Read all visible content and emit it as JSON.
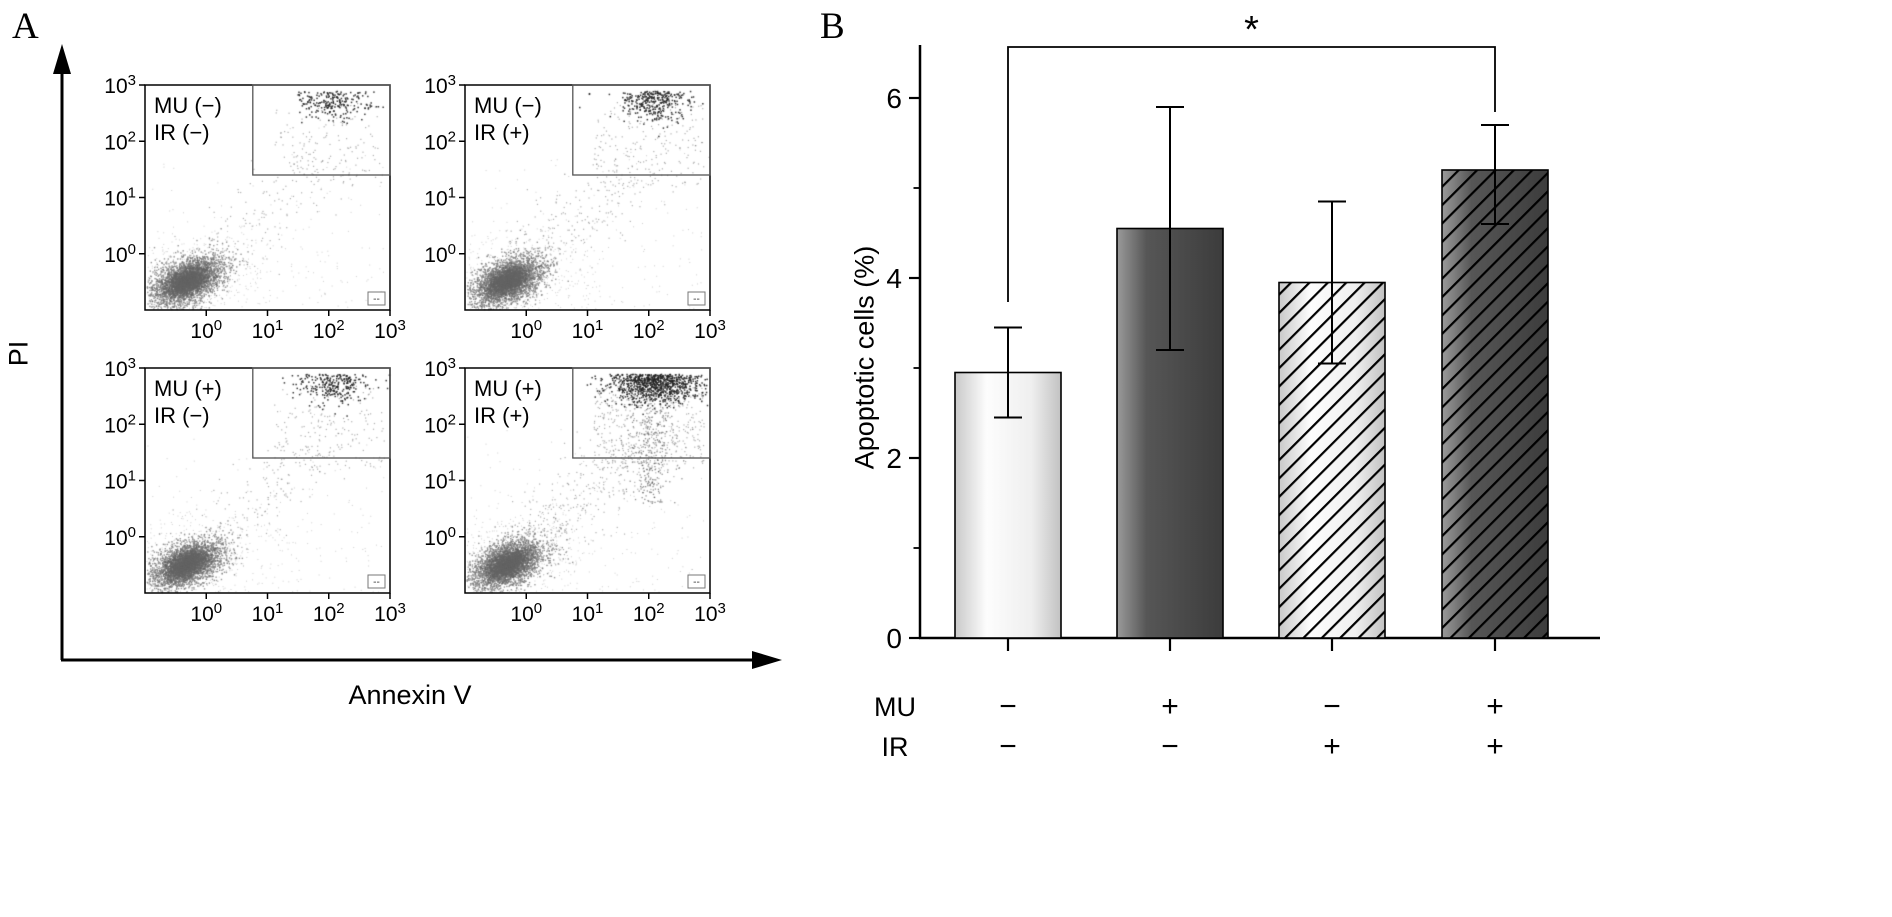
{
  "panel_a": {
    "label": "A",
    "x_axis_label": "Annexin V",
    "y_axis_label": "PI"
  },
  "panel_b": {
    "label": "B"
  },
  "colors": {
    "axis": "#000000",
    "gate_stroke": "#555555",
    "dot_main": "#7d7d7d",
    "dot_dark": "#232323",
    "bar_light_mid": "#fdfdfd",
    "bar_light_edge": "#c2c2c2",
    "bar_dark_mid": "#565656",
    "bar_dark_edge": "#3c3c3c"
  },
  "chart_data": {
    "flow": {
      "type": "scatter",
      "x_axis": "Annexin V",
      "y_axis": "PI",
      "scale": "log10",
      "axis_range_decades": [
        -1,
        3
      ],
      "tick_base": "10",
      "tick_exponents": [
        "0",
        "1",
        "2",
        "3"
      ],
      "corner_box_label": "--",
      "subplots": [
        {
          "line1": "MU (−)",
          "line2": "IR (−)",
          "gate_n": 230,
          "mid_n": 160,
          "tail": false,
          "seed": 101
        },
        {
          "line1": "MU (−)",
          "line2": "IR (+)",
          "gate_n": 330,
          "mid_n": 220,
          "tail": false,
          "seed": 202
        },
        {
          "line1": "MU (+)",
          "line2": "IR (−)",
          "gate_n": 270,
          "mid_n": 180,
          "tail": false,
          "seed": 303
        },
        {
          "line1": "MU (+)",
          "line2": "IR (+)",
          "gate_n": 900,
          "mid_n": 380,
          "tail": true,
          "seed": 404
        }
      ],
      "main_population": {
        "cx": -0.32,
        "cy": -0.48,
        "sx": 0.3,
        "sy": 0.2,
        "n": 2800
      },
      "gate_cluster": {
        "cx": 2.08,
        "cy": 2.72,
        "sx": 0.3,
        "sy": 0.17
      },
      "gate_box_decades": {
        "x0": 0.76,
        "x1": 3,
        "y0": 1.4,
        "y1": 3
      }
    },
    "bar": {
      "type": "bar",
      "title": "",
      "ylabel": "Apoptotic cells (%)",
      "ylim": [
        0,
        6
      ],
      "yticks": [
        0,
        2,
        4,
        6
      ],
      "minor_yticks": [
        1,
        3,
        5
      ],
      "values": [
        2.95,
        4.55,
        3.95,
        5.2
      ],
      "errors_up": [
        0.5,
        1.35,
        0.9,
        0.5
      ],
      "errors_down": [
        0.5,
        1.35,
        0.9,
        0.6
      ],
      "bar_styles": [
        "light",
        "dark",
        "light-hatch",
        "dark-hatch"
      ],
      "row_labels": [
        "MU",
        "IR"
      ],
      "mu_values": [
        "−",
        "+",
        "−",
        "+"
      ],
      "ir_values": [
        "−",
        "−",
        "+",
        "+"
      ],
      "significance": {
        "symbol": "*",
        "from": 0,
        "to": 3
      }
    }
  }
}
